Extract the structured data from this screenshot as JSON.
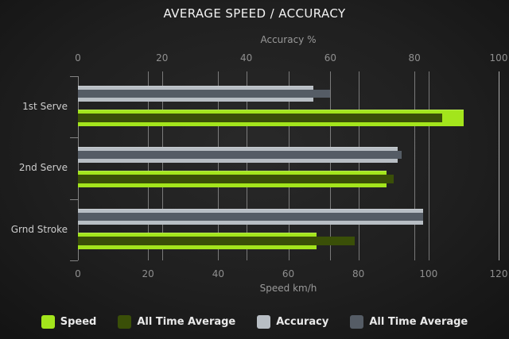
{
  "title": "AVERAGE SPEED / ACCURACY",
  "chart_data": {
    "type": "bar",
    "orientation": "horizontal",
    "categories": [
      "1st Serve",
      "2nd Serve",
      "Grnd Stroke"
    ],
    "series": [
      {
        "name": "Speed",
        "axis": "bottom",
        "role": "main",
        "color": "#a3e51c",
        "values": [
          110,
          88,
          68
        ]
      },
      {
        "name": "All Time Average",
        "axis": "bottom",
        "role": "overlay",
        "color": "#3a4f08",
        "values": [
          104,
          90,
          79
        ]
      },
      {
        "name": "Accuracy",
        "axis": "top",
        "role": "main",
        "color": "#b8bec4",
        "values": [
          56,
          76,
          82
        ]
      },
      {
        "name": "All Time Average",
        "axis": "top",
        "role": "overlay",
        "color": "#555c65",
        "values": [
          60,
          77,
          82
        ]
      }
    ],
    "axes": {
      "top": {
        "label": "Accuracy %",
        "ticks": [
          0,
          20,
          40,
          60,
          80,
          100
        ],
        "max": 100
      },
      "bottom": {
        "label": "Speed km/h",
        "ticks": [
          0,
          20,
          40,
          60,
          80,
          100,
          120
        ],
        "max": 120
      }
    },
    "grid": true,
    "legend_position": "bottom",
    "colors": {
      "background": "#1e1e1e",
      "title_text": "#f3f3f3",
      "axis_text": "#8f8f8f",
      "category_text": "#cdcdcd"
    }
  }
}
